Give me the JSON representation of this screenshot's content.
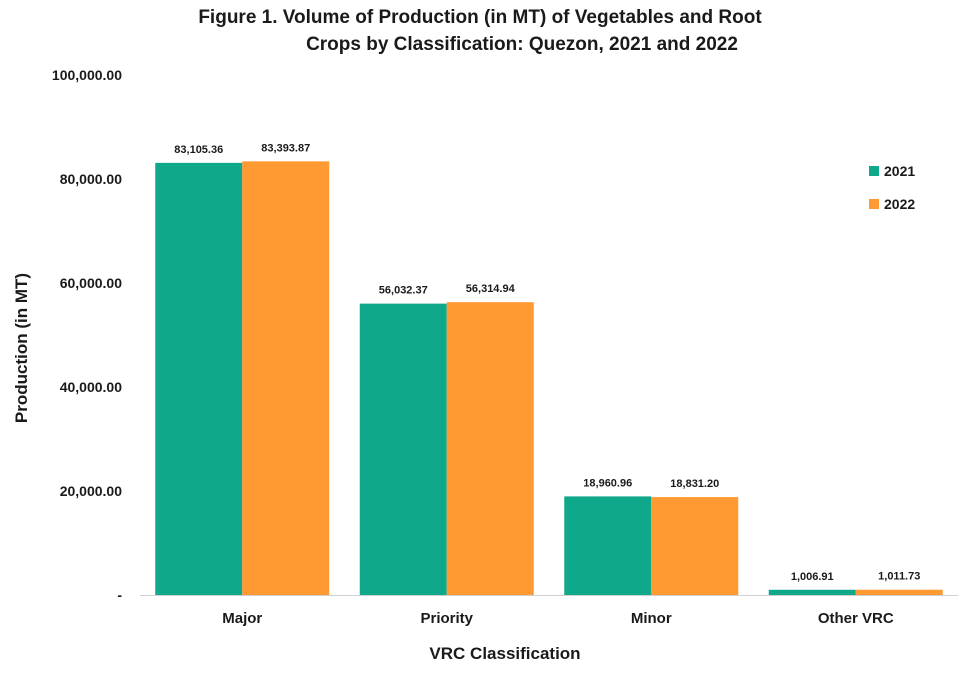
{
  "chart_data": {
    "type": "bar",
    "title_lines": [
      "Figure 1. Volume of Production (in MT) of Vegetables and Root",
      "Crops by Classification: Quezon, 2021 and 2022"
    ],
    "xlabel": "VRC Classification",
    "ylabel": "Production (in MT)",
    "categories": [
      "Major",
      "Priority",
      "Minor",
      "Other VRC"
    ],
    "series": [
      {
        "name": "2021",
        "color": "#0FA88A",
        "values": [
          83105.36,
          56032.37,
          18960.96,
          1006.91
        ],
        "labels": [
          "83,105.36",
          "56,032.37",
          "18,960.96",
          "1,006.91"
        ]
      },
      {
        "name": "2022",
        "color": "#FF9A33",
        "values": [
          83393.87,
          56314.94,
          18831.2,
          1011.73
        ],
        "labels": [
          "83,393.87",
          "56,314.94",
          "18,831.20",
          "1,011.73"
        ]
      }
    ],
    "ylim": [
      0,
      100000
    ],
    "yticks": [
      0,
      20000,
      40000,
      60000,
      80000,
      100000
    ],
    "ytick_labels": [
      "-",
      "20,000.00",
      "40,000.00",
      "60,000.00",
      "80,000.00",
      "100,000.00"
    ],
    "grid": false,
    "legend_position": "right"
  }
}
